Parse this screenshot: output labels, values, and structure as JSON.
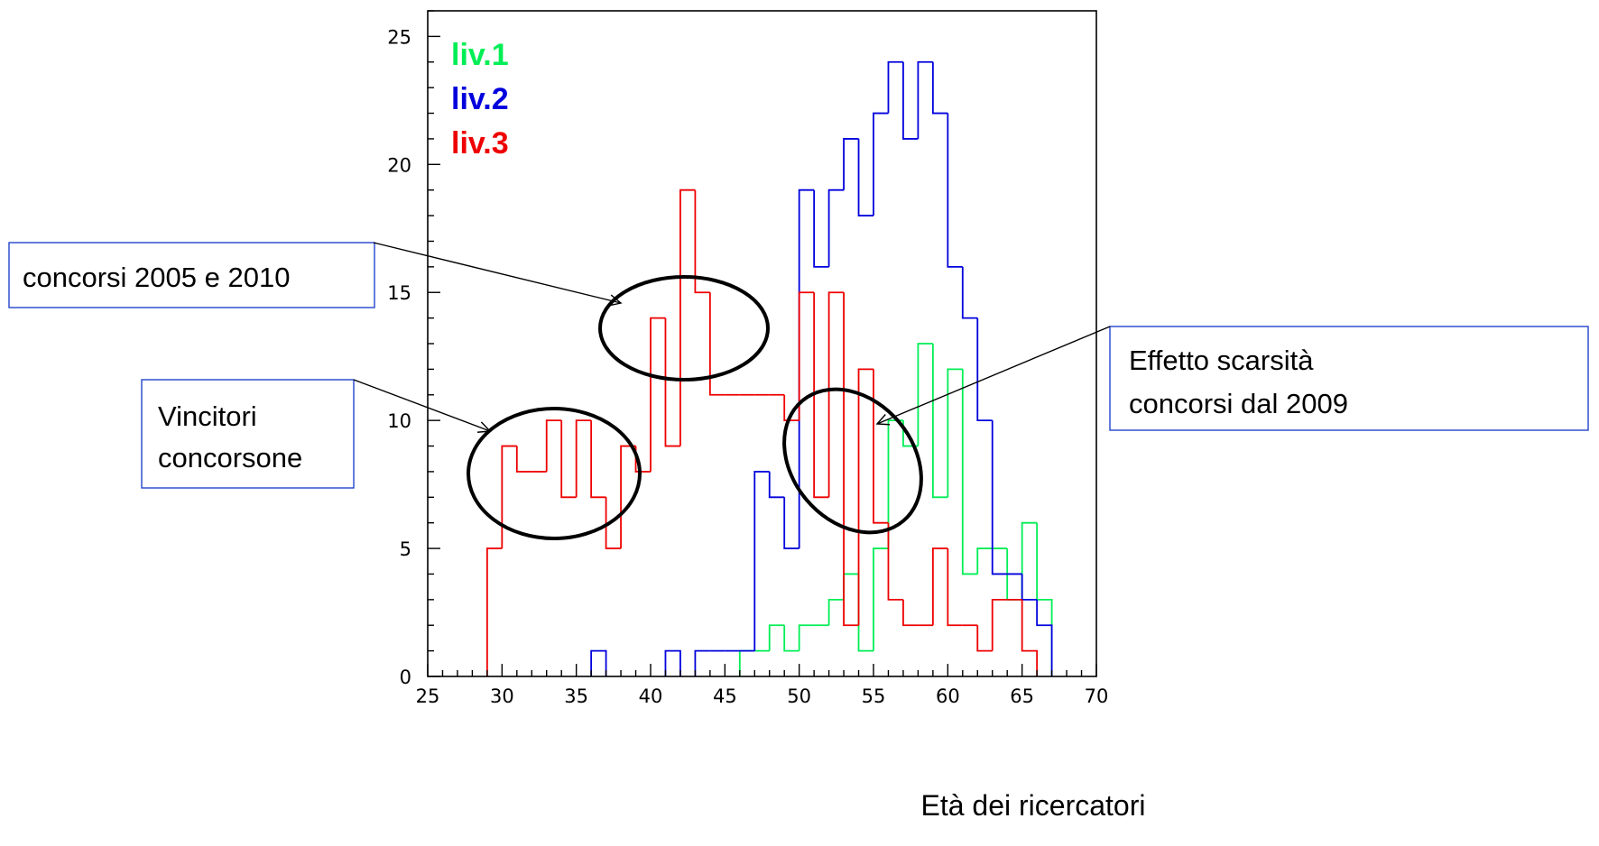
{
  "chart_data": {
    "type": "histogram",
    "title": "",
    "xlabel": "Età dei ricercatori",
    "ylabel": "",
    "xlim": [
      25,
      70
    ],
    "ylim": [
      0,
      26
    ],
    "x_ticks": [
      25,
      30,
      35,
      40,
      45,
      50,
      55,
      60,
      65,
      70
    ],
    "y_ticks": [
      0,
      5,
      10,
      15,
      20,
      25
    ],
    "grid": false,
    "legend_position": "top-left",
    "series": [
      {
        "name": "liv.1",
        "color": "#00ee55",
        "bins": [
          [
            46,
            1
          ],
          [
            47,
            1
          ],
          [
            48,
            2
          ],
          [
            49,
            1
          ],
          [
            50,
            2
          ],
          [
            51,
            2
          ],
          [
            52,
            3
          ],
          [
            53,
            4
          ],
          [
            54,
            1
          ],
          [
            55,
            5
          ],
          [
            56,
            10
          ],
          [
            57,
            9
          ],
          [
            58,
            13
          ],
          [
            59,
            7
          ],
          [
            60,
            12
          ],
          [
            61,
            4
          ],
          [
            62,
            5
          ],
          [
            63,
            5
          ],
          [
            64,
            3
          ],
          [
            65,
            6
          ],
          [
            66,
            3
          ]
        ]
      },
      {
        "name": "liv.2",
        "color": "#0000dd",
        "bins": [
          [
            36,
            1
          ],
          [
            41,
            1
          ],
          [
            43,
            1
          ],
          [
            44,
            1
          ],
          [
            45,
            1
          ],
          [
            46,
            1
          ],
          [
            47,
            8
          ],
          [
            48,
            7
          ],
          [
            49,
            5
          ],
          [
            50,
            19
          ],
          [
            51,
            16
          ],
          [
            52,
            19
          ],
          [
            53,
            21
          ],
          [
            54,
            18
          ],
          [
            55,
            22
          ],
          [
            56,
            24
          ],
          [
            57,
            21
          ],
          [
            58,
            24
          ],
          [
            59,
            22
          ],
          [
            60,
            16
          ],
          [
            61,
            14
          ],
          [
            62,
            10
          ],
          [
            63,
            4
          ],
          [
            64,
            4
          ],
          [
            65,
            3
          ],
          [
            66,
            2
          ]
        ]
      },
      {
        "name": "liv.3",
        "color": "#ee0000",
        "bins": [
          [
            29,
            5
          ],
          [
            30,
            9
          ],
          [
            31,
            8
          ],
          [
            32,
            8
          ],
          [
            33,
            10
          ],
          [
            34,
            7
          ],
          [
            35,
            10
          ],
          [
            36,
            7
          ],
          [
            37,
            5
          ],
          [
            38,
            9
          ],
          [
            39,
            8
          ],
          [
            40,
            14
          ],
          [
            41,
            9
          ],
          [
            42,
            19
          ],
          [
            43,
            15
          ],
          [
            44,
            11
          ],
          [
            45,
            11
          ],
          [
            46,
            11
          ],
          [
            47,
            11
          ],
          [
            48,
            11
          ],
          [
            49,
            10
          ],
          [
            50,
            15
          ],
          [
            51,
            7
          ],
          [
            52,
            15
          ],
          [
            53,
            2
          ],
          [
            54,
            12
          ],
          [
            55,
            6
          ],
          [
            56,
            3
          ],
          [
            57,
            2
          ],
          [
            58,
            2
          ],
          [
            59,
            5
          ],
          [
            60,
            2
          ],
          [
            61,
            2
          ],
          [
            62,
            1
          ],
          [
            63,
            3
          ],
          [
            64,
            3
          ],
          [
            65,
            1
          ]
        ]
      }
    ],
    "annotations": [
      {
        "text": [
          "concorsi 2005 e 2010"
        ]
      },
      {
        "text": [
          "Vincitori",
          "concorsone"
        ]
      },
      {
        "text": [
          "Effetto scarsità",
          "concorsi dal 2009"
        ]
      }
    ]
  }
}
